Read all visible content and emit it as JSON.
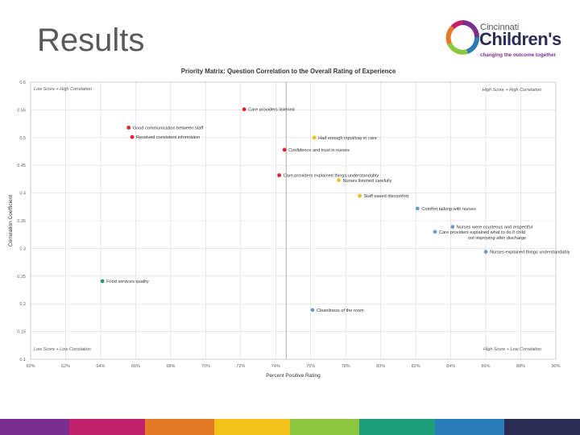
{
  "slide": {
    "title": "Results"
  },
  "logo": {
    "line1": "Cincinnati",
    "line2": "Children's",
    "tagline": "changing the outcome together"
  },
  "colors": {
    "red": "#e0202a",
    "yellow": "#f2c21a",
    "blue": "#6c9bc7",
    "green": "#1e9e78",
    "footer": [
      "#7a2f8f",
      "#c1216b",
      "#e37826",
      "#f2c21a",
      "#8dc63f",
      "#1e9e78",
      "#2b7bb9",
      "#2c2c54"
    ]
  },
  "chart_data": {
    "type": "scatter",
    "title": "Priority Matrix: Question Correlation to the Overall Rating of Experience",
    "xlabel": "Percent Positive Rating",
    "ylabel": "Correlation Coefficient",
    "xlim": [
      60,
      90
    ],
    "ylim": [
      0.1,
      0.6
    ],
    "xticks": [
      60,
      62,
      64,
      66,
      68,
      70,
      72,
      74,
      76,
      78,
      80,
      82,
      84,
      86,
      88,
      90
    ],
    "xtick_labels": [
      "60%",
      "62%",
      "64%",
      "66%",
      "68%",
      "70%",
      "72%",
      "74%",
      "76%",
      "78%",
      "80%",
      "82%",
      "84%",
      "86%",
      "88%",
      "90%"
    ],
    "yticks": [
      0.1,
      0.15,
      0.2,
      0.25,
      0.3,
      0.35,
      0.4,
      0.45,
      0.5,
      0.55,
      0.6
    ],
    "ytick_labels": [
      "0.1",
      "0.15",
      "0.2",
      "0.25",
      "0.3",
      "0.35",
      "0.4",
      "0.45",
      "0.5",
      "0.55",
      "0.6"
    ],
    "divider_x": 74.6,
    "quadrant_labels": {
      "top_left": "Low Score + High Correlation",
      "top_right": "High Score + High Correlation",
      "bottom_left": "Low Score + Low Correlation",
      "bottom_right": "High Score + Low Correlation"
    },
    "points": [
      {
        "label": "Care providers listened",
        "x": 72.2,
        "y": 0.551,
        "color": "red"
      },
      {
        "label": "Good communication between staff",
        "x": 65.6,
        "y": 0.518,
        "color": "red"
      },
      {
        "label": "Received consistent information",
        "x": 65.8,
        "y": 0.501,
        "color": "red"
      },
      {
        "label": "Confidence and trust in nurses",
        "x": 74.5,
        "y": 0.478,
        "color": "red"
      },
      {
        "label": "Care providers explained things understandably",
        "x": 74.2,
        "y": 0.432,
        "color": "red"
      },
      {
        "label": "Had enough input/say in care",
        "x": 76.2,
        "y": 0.5,
        "color": "yellow"
      },
      {
        "label": "Nurses listened carefully",
        "x": 77.6,
        "y": 0.423,
        "color": "yellow"
      },
      {
        "label": "Staff eased discomfort",
        "x": 78.8,
        "y": 0.395,
        "color": "yellow"
      },
      {
        "label": "Comfort talking with nurses",
        "x": 82.1,
        "y": 0.372,
        "color": "blue"
      },
      {
        "label": "Nurses were courteous and respectful",
        "x": 84.1,
        "y": 0.339,
        "color": "blue"
      },
      {
        "label": "Care providers explained what to do if child not improving after discharge",
        "x": 83.1,
        "y": 0.33,
        "color": "blue"
      },
      {
        "label": "Nurses explained things understandably",
        "x": 86.0,
        "y": 0.294,
        "color": "blue"
      },
      {
        "label": "Cleanliness of the room",
        "x": 76.1,
        "y": 0.189,
        "color": "blue"
      },
      {
        "label": "Food services quality",
        "x": 64.1,
        "y": 0.241,
        "color": "green"
      }
    ]
  }
}
